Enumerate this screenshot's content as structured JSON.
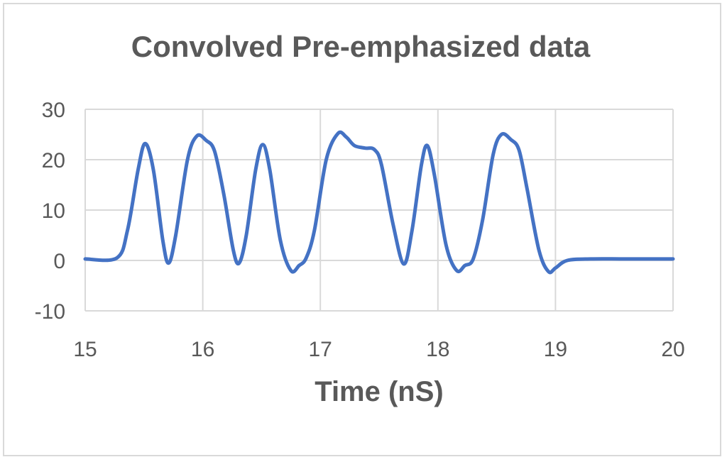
{
  "chart_data": {
    "type": "line",
    "title": "Convolved Pre-emphasized data",
    "xlabel": "Time (nS)",
    "ylabel": "",
    "xlim": [
      15,
      20
    ],
    "ylim": [
      -10,
      30
    ],
    "x_ticks": [
      15,
      16,
      17,
      18,
      19,
      20
    ],
    "y_ticks": [
      -10,
      0,
      10,
      20,
      30
    ],
    "grid": true,
    "legend": null,
    "series": [
      {
        "name": "Convolved Pre-emphasized data",
        "color": "#4472c4",
        "x": [
          15.0,
          15.27,
          15.36,
          15.45,
          15.51,
          15.58,
          15.66,
          15.71,
          15.77,
          15.87,
          15.95,
          16.03,
          16.1,
          16.18,
          16.26,
          16.31,
          16.37,
          16.45,
          16.51,
          16.57,
          16.66,
          16.75,
          16.82,
          16.88,
          16.95,
          17.05,
          17.15,
          17.22,
          17.29,
          17.38,
          17.46,
          17.52,
          17.62,
          17.71,
          17.78,
          17.86,
          17.91,
          17.97,
          18.07,
          18.16,
          18.23,
          18.3,
          18.38,
          18.47,
          18.54,
          18.62,
          18.69,
          18.76,
          18.86,
          18.94,
          19.0,
          19.1,
          19.3,
          19.6,
          20.0
        ],
        "y": [
          0.3,
          0.5,
          6,
          18,
          23.2,
          18,
          4,
          -0.5,
          5,
          20,
          24.7,
          23.8,
          21.7,
          13,
          2,
          -0.5,
          5,
          18,
          23,
          18,
          4,
          -2,
          -1,
          0.5,
          6,
          20,
          25.2,
          24.5,
          22.8,
          22.3,
          22,
          19,
          7,
          -0.7,
          6,
          19,
          22.8,
          17,
          3,
          -2,
          -1,
          0.3,
          8,
          21,
          25,
          24,
          21.9,
          14,
          2,
          -2.2,
          -1.5,
          0,
          0.3,
          0.3,
          0.3
        ]
      }
    ]
  },
  "title": "Convolved Pre-emphasized data",
  "axes": {
    "xlabel": "Time (nS)",
    "x_tick_labels": [
      "15",
      "16",
      "17",
      "18",
      "19",
      "20"
    ],
    "y_tick_labels": [
      "30",
      "20",
      "10",
      "0",
      "-10"
    ]
  },
  "colors": {
    "series": "#4472c4",
    "grid": "#d9d9d9",
    "text": "#595959"
  }
}
